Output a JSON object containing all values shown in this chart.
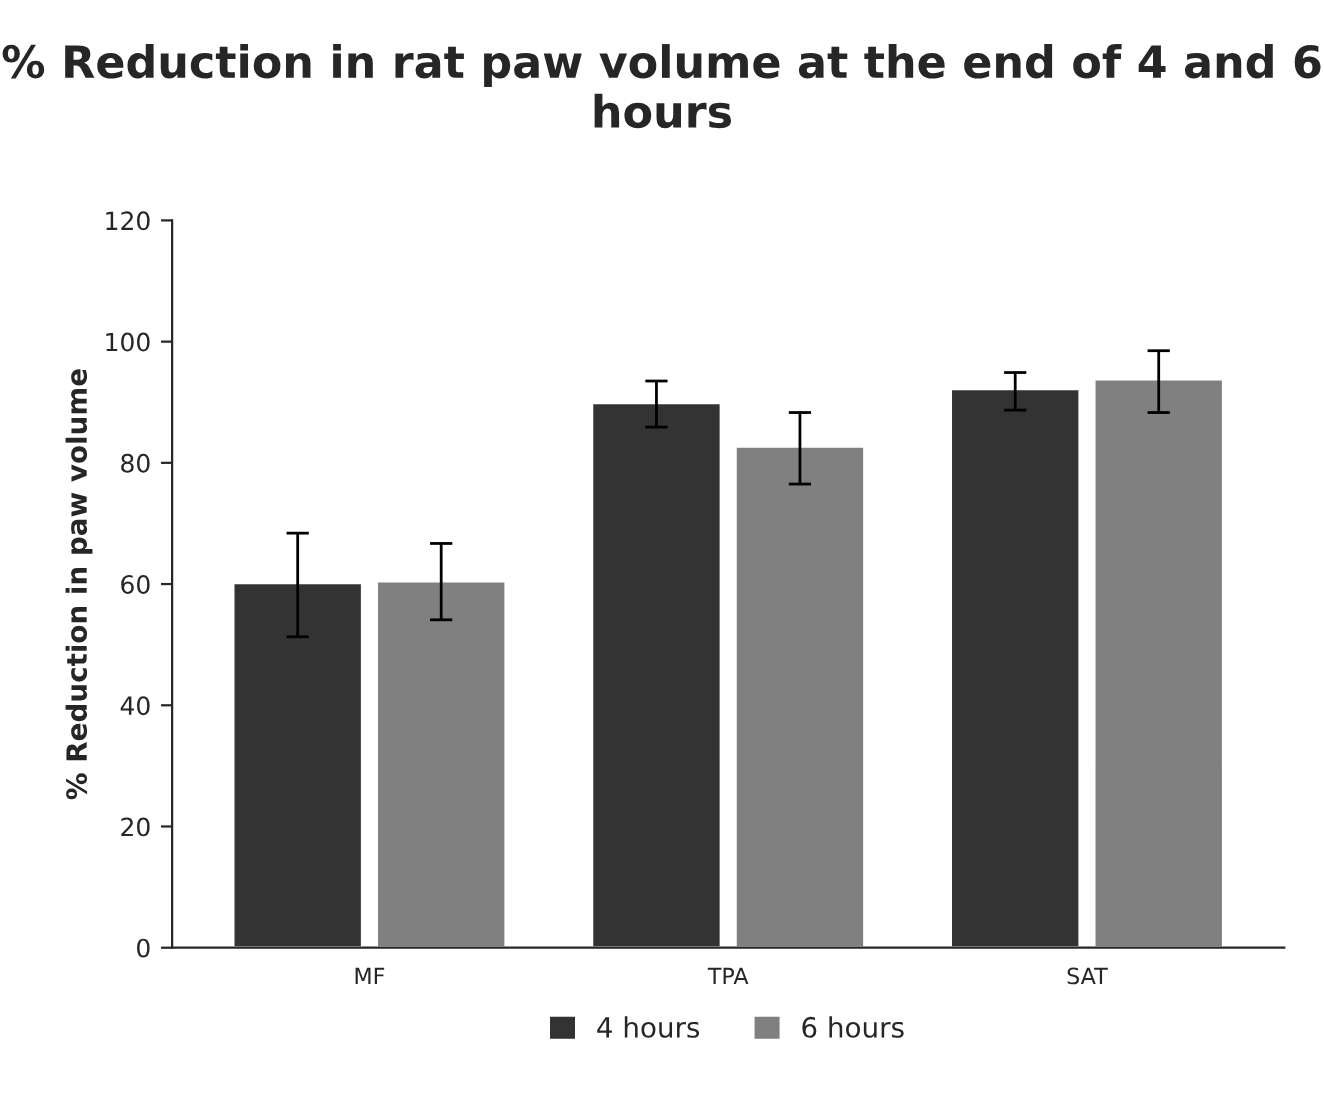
{
  "chart_data": {
    "type": "bar",
    "title": "% Reduction in rat paw volume at the end of 4 and 6 hours",
    "ylabel": "% Reduction in paw volume",
    "categories": [
      "MF",
      "TPA",
      "SAT"
    ],
    "series": [
      {
        "name": "4 hours",
        "color": "#333333",
        "values": [
          60.2,
          89.9,
          92.2
        ],
        "errors": [
          [
            51.3,
            68.4
          ],
          [
            85.9,
            93.5
          ],
          [
            88.7,
            94.9
          ]
        ]
      },
      {
        "name": "6 hours",
        "color": "#808080",
        "values": [
          60.5,
          82.7,
          93.8
        ],
        "errors": [
          [
            54.1,
            66.7
          ],
          [
            76.5,
            88.3
          ],
          [
            88.3,
            98.5
          ]
        ]
      }
    ],
    "ylim": [
      0,
      120
    ],
    "yticks": [
      0,
      20,
      40,
      60,
      80,
      100,
      120
    ],
    "grid": false,
    "legend": "bottom"
  }
}
